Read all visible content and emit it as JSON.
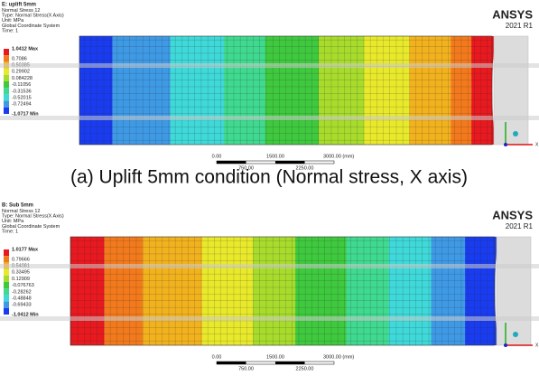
{
  "legend_colors": [
    "#e8191f",
    "#f37a1c",
    "#f2b21e",
    "#e9e92b",
    "#a8dc2c",
    "#3fc93e",
    "#3fd98f",
    "#3fd9d9",
    "#3f9ae6",
    "#1a3cf0"
  ],
  "panels": [
    {
      "header": {
        "title": "E: uplift 5mm",
        "lines": [
          "Normal Stress 12",
          "Type: Normal Stress(X Axis)",
          "Unit: MPa",
          "Global Coordinate System",
          "Time: 1"
        ]
      },
      "legend": {
        "labels": [
          "1.0412 Max",
          "0.7086",
          "0.50385",
          "0.29902",
          "0.084228",
          "-0.11056",
          "-0.31536",
          "-0.52015",
          "-0.72494",
          "-1.0717 Min"
        ]
      },
      "logo": {
        "brand": "ANSYS",
        "version": "2021 R1"
      },
      "scale_bar": {
        "top": [
          "0.00",
          "1500.00",
          "3000.00 (mm)"
        ],
        "bottom": [
          "750.00",
          "2250.00"
        ]
      },
      "axis_label": "X",
      "caption": "(a) Uplift 5mm condition (Normal stress, X axis)"
    },
    {
      "header": {
        "title": "B: Sub 5mm",
        "lines": [
          "Normal Stress 12",
          "Type: Normal Stress(X Axis)",
          "Unit: MPa",
          "Global Coordinate System",
          "Time: 1"
        ]
      },
      "legend": {
        "labels": [
          "1.0177 Max",
          "0.79666",
          "0.54081",
          "0.33495",
          "0.12909",
          "-0.076763",
          "-0.28262",
          "-0.48848",
          "-0.69433",
          "-1.0412 Min"
        ]
      },
      "logo": {
        "brand": "ANSYS",
        "version": "2021 R1"
      },
      "scale_bar": {
        "top": [
          "0.00",
          "1500.00",
          "3000.00 (mm)"
        ],
        "bottom": [
          "750.00",
          "2250.00"
        ]
      },
      "axis_label": "X"
    }
  ]
}
